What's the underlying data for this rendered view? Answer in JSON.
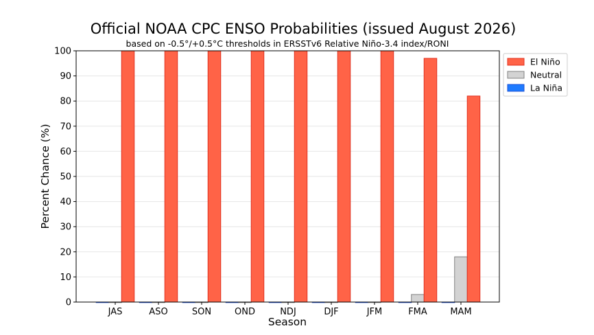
{
  "chart_data": {
    "type": "bar",
    "title": "Official NOAA CPC ENSO Probabilities (issued August 2026)",
    "subtitle": "based on -0.5°/+0.5°C thresholds in ERSSTv6 Relative Niño-3.4 index/RONI",
    "xlabel": "Season",
    "ylabel": "Percent Chance (%)",
    "ylim": [
      0,
      100
    ],
    "yticks": [
      0,
      10,
      20,
      30,
      40,
      50,
      60,
      70,
      80,
      90,
      100
    ],
    "grid": true,
    "legend_position": "upper-right-outside",
    "categories": [
      "JAS",
      "ASO",
      "SON",
      "OND",
      "NDJ",
      "DJF",
      "JFM",
      "FMA",
      "MAM"
    ],
    "series": [
      {
        "name": "La Niña",
        "color": "#1e7bff",
        "values": [
          0,
          0,
          0,
          0,
          0,
          0,
          0,
          0,
          0
        ]
      },
      {
        "name": "Neutral",
        "color": "#d3d3d3",
        "values": [
          0,
          0,
          0,
          0,
          0,
          0,
          0,
          3,
          18
        ]
      },
      {
        "name": "El Niño",
        "color": "#ff6347",
        "values": [
          100,
          100,
          100,
          100,
          100,
          100,
          100,
          97,
          82
        ]
      }
    ],
    "legend_order": [
      "El Niño",
      "Neutral",
      "La Niña"
    ]
  }
}
